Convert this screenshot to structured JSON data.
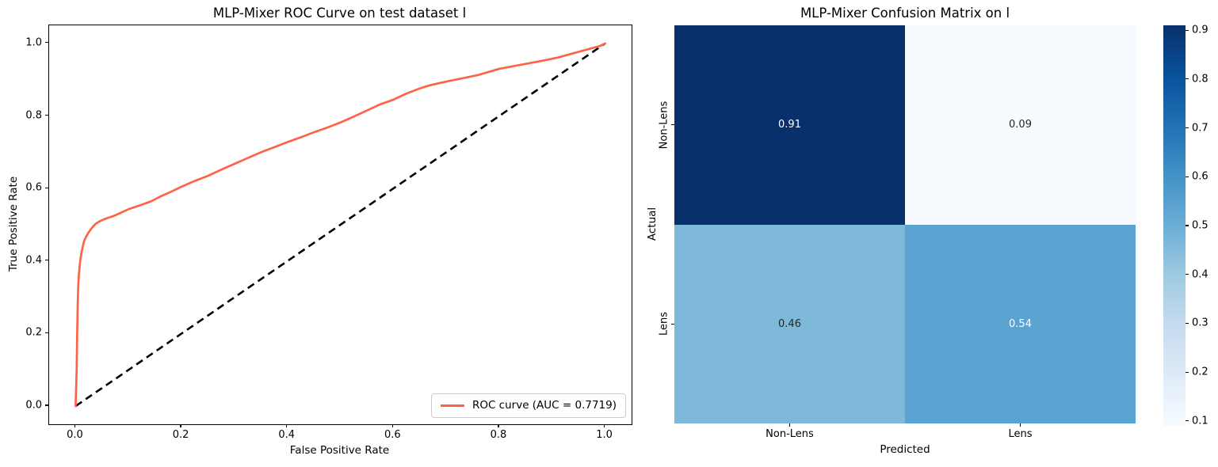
{
  "figure": {
    "background": "#ffffff"
  },
  "chart_data": [
    {
      "type": "line",
      "title": "MLP-Mixer ROC Curve on test dataset l",
      "xlabel": "False Positive Rate",
      "ylabel": "True Positive Rate",
      "xlim": [
        -0.05,
        1.05
      ],
      "ylim": [
        -0.05,
        1.05
      ],
      "xticks": [
        0.0,
        0.2,
        0.4,
        0.6,
        0.8,
        1.0
      ],
      "yticks": [
        0.0,
        0.2,
        0.4,
        0.6,
        0.8,
        1.0
      ],
      "xtick_labels": [
        "0.0",
        "0.2",
        "0.4",
        "0.6",
        "0.8",
        "1.0"
      ],
      "ytick_labels": [
        "0.0",
        "0.2",
        "0.4",
        "0.6",
        "0.8",
        "1.0"
      ],
      "grid": false,
      "legend_position": "lower right",
      "auc": 0.7719,
      "series": [
        {
          "name": "ROC curve (AUC = 0.7719)",
          "color": "#ff6347",
          "style": "solid",
          "points": [
            [
              0.0,
              0.0
            ],
            [
              0.002,
              0.1
            ],
            [
              0.003,
              0.2
            ],
            [
              0.004,
              0.28
            ],
            [
              0.005,
              0.33
            ],
            [
              0.006,
              0.36
            ],
            [
              0.008,
              0.39
            ],
            [
              0.009,
              0.405
            ],
            [
              0.012,
              0.43
            ],
            [
              0.016,
              0.455
            ],
            [
              0.02,
              0.468
            ],
            [
              0.025,
              0.48
            ],
            [
              0.031,
              0.492
            ],
            [
              0.038,
              0.503
            ],
            [
              0.046,
              0.51
            ],
            [
              0.055,
              0.516
            ],
            [
              0.065,
              0.521
            ],
            [
              0.073,
              0.525
            ],
            [
              0.085,
              0.533
            ],
            [
              0.1,
              0.543
            ],
            [
              0.12,
              0.553
            ],
            [
              0.143,
              0.565
            ],
            [
              0.16,
              0.578
            ],
            [
              0.18,
              0.591
            ],
            [
              0.2,
              0.605
            ],
            [
              0.225,
              0.621
            ],
            [
              0.25,
              0.635
            ],
            [
              0.275,
              0.652
            ],
            [
              0.3,
              0.668
            ],
            [
              0.325,
              0.684
            ],
            [
              0.35,
              0.7
            ],
            [
              0.375,
              0.714
            ],
            [
              0.4,
              0.728
            ],
            [
              0.425,
              0.741
            ],
            [
              0.45,
              0.755
            ],
            [
              0.475,
              0.768
            ],
            [
              0.5,
              0.782
            ],
            [
              0.52,
              0.795
            ],
            [
              0.55,
              0.815
            ],
            [
              0.575,
              0.832
            ],
            [
              0.6,
              0.845
            ],
            [
              0.625,
              0.862
            ],
            [
              0.65,
              0.876
            ],
            [
              0.67,
              0.885
            ],
            [
              0.7,
              0.895
            ],
            [
              0.73,
              0.904
            ],
            [
              0.76,
              0.913
            ],
            [
              0.8,
              0.93
            ],
            [
              0.84,
              0.941
            ],
            [
              0.88,
              0.952
            ],
            [
              0.91,
              0.961
            ],
            [
              0.94,
              0.973
            ],
            [
              0.97,
              0.985
            ],
            [
              0.99,
              0.993
            ],
            [
              1.0,
              1.0
            ]
          ]
        },
        {
          "name": "",
          "color": "#000000",
          "style": "dashed",
          "points": [
            [
              0.0,
              0.0
            ],
            [
              1.0,
              1.0
            ]
          ]
        }
      ]
    },
    {
      "type": "heatmap",
      "title": "MLP-Mixer Confusion Matrix on l",
      "xlabel": "Predicted",
      "ylabel": "Actual",
      "x_categories": [
        "Non-Lens",
        "Lens"
      ],
      "y_categories": [
        "Non-Lens",
        "Lens"
      ],
      "values": [
        [
          0.91,
          0.09
        ],
        [
          0.46,
          0.54
        ]
      ],
      "cell_colors": [
        [
          "#08306b",
          "#f7fbff"
        ],
        [
          "#7fb9da",
          "#5ba3d0"
        ]
      ],
      "text_colors": [
        [
          "#ffffff",
          "#262626"
        ],
        [
          "#262626",
          "#ffffff"
        ]
      ],
      "colormap": "Blues",
      "colorbar": {
        "vmin": 0.09,
        "vmax": 0.91,
        "ticks": [
          0.9,
          0.8,
          0.7,
          0.6,
          0.5,
          0.4,
          0.3,
          0.2,
          0.1
        ],
        "gradient_top_to_bottom": [
          "#08306b",
          "#08519c",
          "#2171b5",
          "#4292c6",
          "#6baed6",
          "#9ecae1",
          "#c6dbef",
          "#deebf7",
          "#f7fbff"
        ]
      }
    }
  ]
}
